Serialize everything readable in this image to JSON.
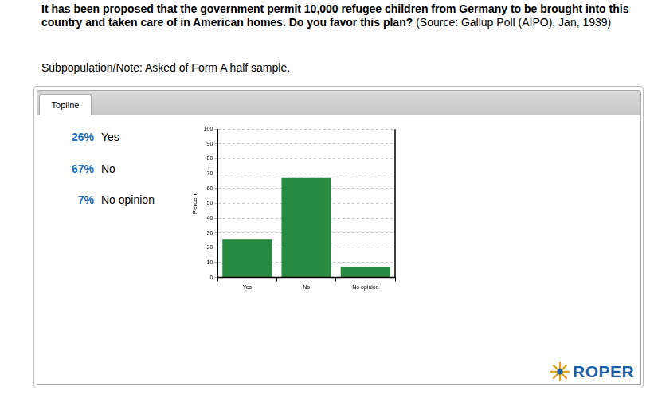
{
  "question": "It has been proposed that the government permit 10,000 refugee children from Germany to be brought into this country and taken care of in American homes. Do you favor this plan?",
  "source": "(Source: Gallup Poll (AIPO), Jan, 1939)",
  "note": "Subpopulation/Note: Asked of Form A half sample.",
  "tab": "Topline",
  "topline": [
    {
      "percent": "26%",
      "answer": "Yes"
    },
    {
      "percent": "67%",
      "answer": "No"
    },
    {
      "percent": "7%",
      "answer": "No opinion"
    }
  ],
  "logo": "ROPER",
  "chart_data": {
    "type": "bar",
    "categories": [
      "Yes",
      "No",
      "No opinion"
    ],
    "values": [
      26,
      67,
      7
    ],
    "color": "#288a41",
    "ylabel": "Percent",
    "ylim": [
      0,
      100
    ],
    "yticks": [
      0,
      10,
      20,
      30,
      40,
      50,
      60,
      70,
      80,
      90,
      100
    ],
    "grid": true
  }
}
